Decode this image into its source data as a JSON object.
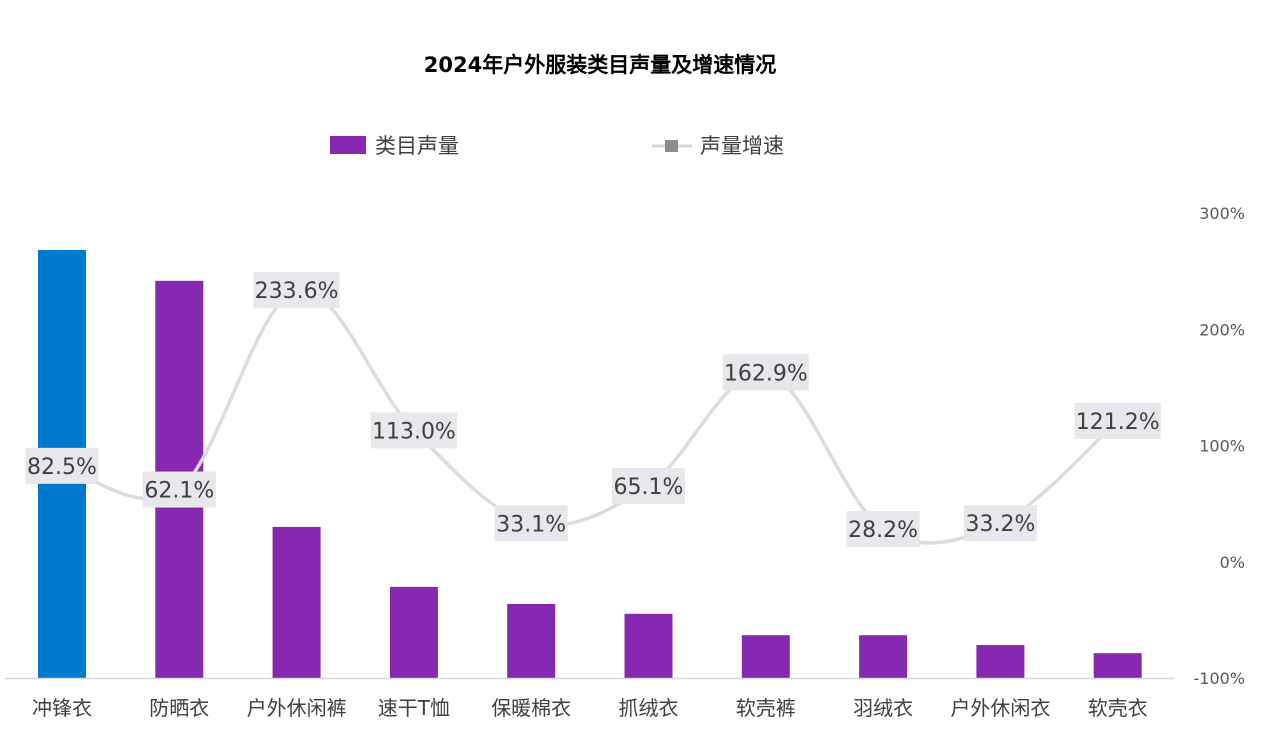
{
  "chart_data": {
    "type": "bar+line",
    "title": "2024年户外服装类目声量及增速情况",
    "categories": [
      "冲锋衣",
      "防晒衣",
      "户外休闲裤",
      "速干T恤",
      "保暖棉衣",
      "抓绒衣",
      "软壳裤",
      "羽绒衣",
      "户外休闲衣",
      "软壳衣"
    ],
    "series": [
      {
        "name": "类目声量",
        "type": "bar",
        "axis": "left (unlabeled, relative)",
        "values": [
          100,
          92.8,
          35.3,
          21.3,
          17.3,
          15.0,
          10.0,
          10.0,
          7.7,
          5.8
        ],
        "color": "#8629b0",
        "highlight_color": "#0078cc",
        "highlight_index": 0
      },
      {
        "name": "声量增速",
        "type": "line",
        "axis": "right",
        "values": [
          82.5,
          62.1,
          233.6,
          113.0,
          33.1,
          65.1,
          162.9,
          28.2,
          33.2,
          121.2
        ],
        "labels": [
          "82.5%",
          "62.1%",
          "233.6%",
          "113.0%",
          "33.1%",
          "65.1%",
          "162.9%",
          "28.2%",
          "33.2%",
          "121.2%"
        ],
        "color": "#d9d9d9"
      }
    ],
    "y2_ticks": [
      "300%",
      "200%",
      "100%",
      "0%",
      "-100%"
    ],
    "y2lim": [
      -100,
      300
    ],
    "legend": "top",
    "grid": false
  }
}
